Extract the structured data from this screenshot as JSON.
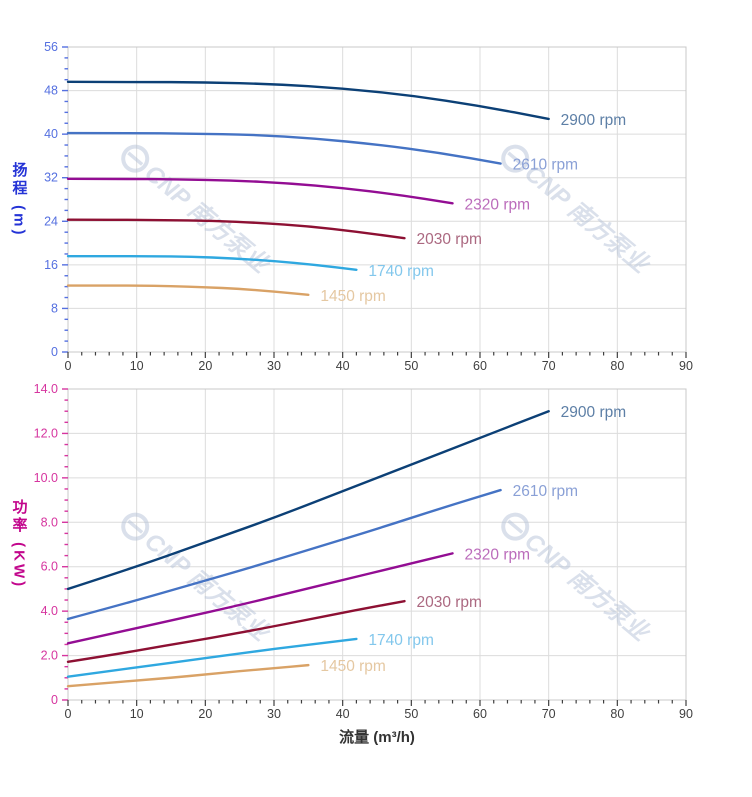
{
  "watermark": {
    "brand": "CNP",
    "text": "南方泵业",
    "color": "#b6c3d8",
    "opacity": 0.5
  },
  "chart_data": [
    {
      "id": "head-chart",
      "type": "line",
      "y_title": "扬程 (m)",
      "x_title": "",
      "axis_label_color": "#2433d6",
      "tick_color": "#5570e0",
      "x_tick_color": "#3f3f3f",
      "grid": true,
      "x_axis": {
        "min": 0,
        "max": 90,
        "major": 10,
        "minor": 2,
        "labels": [
          "0",
          "10",
          "20",
          "30",
          "40",
          "50",
          "60",
          "70",
          "80",
          "90"
        ]
      },
      "y_axis": {
        "min": 0,
        "max": 56,
        "major": 8,
        "minor": 2,
        "labels": [
          "0",
          "8",
          "16",
          "24",
          "32",
          "40",
          "48",
          "56"
        ]
      },
      "series": [
        {
          "name": "2900 rpm",
          "color": "#0c4076",
          "label_color": "#5d7fa6",
          "points": [
            [
              0,
              49.6
            ],
            [
              10,
              49.6
            ],
            [
              20,
              49.5
            ],
            [
              30,
              49.2
            ],
            [
              40,
              48.4
            ],
            [
              50,
              47.1
            ],
            [
              60,
              45.2
            ],
            [
              70,
              42.8
            ]
          ]
        },
        {
          "name": "2610 rpm",
          "color": "#4573c4",
          "label_color": "#8aa0d6",
          "points": [
            [
              0,
              40.2
            ],
            [
              9,
              40.2
            ],
            [
              18,
              40.1
            ],
            [
              27,
              39.9
            ],
            [
              36,
              39.2
            ],
            [
              45,
              38.1
            ],
            [
              54,
              36.6
            ],
            [
              63,
              34.6
            ]
          ]
        },
        {
          "name": "2320 rpm",
          "color": "#930d93",
          "label_color": "#bb6cbb",
          "points": [
            [
              0,
              31.8
            ],
            [
              8,
              31.8
            ],
            [
              16,
              31.7
            ],
            [
              24,
              31.5
            ],
            [
              32,
              31.0
            ],
            [
              40,
              30.1
            ],
            [
              48,
              28.9
            ],
            [
              56,
              27.3
            ]
          ]
        },
        {
          "name": "2030 rpm",
          "color": "#8d1033",
          "label_color": "#ab6880",
          "points": [
            [
              0,
              24.3
            ],
            [
              7,
              24.3
            ],
            [
              14,
              24.2
            ],
            [
              21,
              24.1
            ],
            [
              28,
              23.7
            ],
            [
              35,
              23.1
            ],
            [
              42,
              22.1
            ],
            [
              49,
              20.9
            ]
          ]
        },
        {
          "name": "1740 rpm",
          "color": "#2fa8e0",
          "label_color": "#82c7ec",
          "points": [
            [
              0,
              17.6
            ],
            [
              6,
              17.6
            ],
            [
              12,
              17.6
            ],
            [
              18,
              17.5
            ],
            [
              24,
              17.2
            ],
            [
              30,
              16.7
            ],
            [
              36,
              16.0
            ],
            [
              42,
              15.1
            ]
          ]
        },
        {
          "name": "1450 rpm",
          "color": "#d9a266",
          "label_color": "#e5c8a2",
          "points": [
            [
              0,
              12.2
            ],
            [
              5,
              12.2
            ],
            [
              10,
              12.2
            ],
            [
              15,
              12.1
            ],
            [
              20,
              11.9
            ],
            [
              25,
              11.6
            ],
            [
              30,
              11.1
            ],
            [
              35,
              10.5
            ]
          ]
        }
      ]
    },
    {
      "id": "power-chart",
      "type": "line",
      "y_title": "功率 (KW)",
      "x_title": "流量 (m³/h)",
      "axis_label_color": "#c2068c",
      "tick_color": "#d6359f",
      "x_tick_color": "#3f3f3f",
      "grid": true,
      "x_axis": {
        "min": 0,
        "max": 90,
        "major": 10,
        "minor": 2,
        "labels": [
          "0",
          "10",
          "20",
          "30",
          "40",
          "50",
          "60",
          "70",
          "80",
          "90"
        ]
      },
      "y_axis": {
        "min": 0,
        "max": 14,
        "major": 2,
        "minor": 0.5,
        "labels": [
          "0",
          "2.0",
          "4.0",
          "6.0",
          "8.0",
          "10.0",
          "12.0",
          "14.0"
        ]
      },
      "series": [
        {
          "name": "2900 rpm",
          "color": "#0c4076",
          "label_color": "#5d7fa6",
          "points": [
            [
              0,
              5.0
            ],
            [
              10,
              6.0
            ],
            [
              20,
              7.1
            ],
            [
              30,
              8.2
            ],
            [
              40,
              9.4
            ],
            [
              50,
              10.6
            ],
            [
              60,
              11.8
            ],
            [
              70,
              13.0
            ]
          ]
        },
        {
          "name": "2610 rpm",
          "color": "#4573c4",
          "label_color": "#8aa0d6",
          "points": [
            [
              0,
              3.65
            ],
            [
              9,
              4.4
            ],
            [
              18,
              5.2
            ],
            [
              27,
              6.0
            ],
            [
              36,
              6.85
            ],
            [
              45,
              7.7
            ],
            [
              54,
              8.6
            ],
            [
              63,
              9.45
            ]
          ]
        },
        {
          "name": "2320 rpm",
          "color": "#930d93",
          "label_color": "#bb6cbb",
          "points": [
            [
              0,
              2.55
            ],
            [
              8,
              3.1
            ],
            [
              16,
              3.65
            ],
            [
              24,
              4.2
            ],
            [
              32,
              4.8
            ],
            [
              40,
              5.4
            ],
            [
              48,
              6.0
            ],
            [
              56,
              6.6
            ]
          ]
        },
        {
          "name": "2030 rpm",
          "color": "#8d1033",
          "label_color": "#ab6880",
          "points": [
            [
              0,
              1.72
            ],
            [
              7,
              2.06
            ],
            [
              14,
              2.44
            ],
            [
              21,
              2.8
            ],
            [
              28,
              3.2
            ],
            [
              35,
              3.62
            ],
            [
              42,
              4.05
            ],
            [
              49,
              4.45
            ]
          ]
        },
        {
          "name": "1740 rpm",
          "color": "#2fa8e0",
          "label_color": "#82c7ec",
          "points": [
            [
              0,
              1.05
            ],
            [
              6,
              1.3
            ],
            [
              12,
              1.55
            ],
            [
              18,
              1.8
            ],
            [
              24,
              2.05
            ],
            [
              30,
              2.3
            ],
            [
              36,
              2.52
            ],
            [
              42,
              2.75
            ]
          ]
        },
        {
          "name": "1450 rpm",
          "color": "#d9a266",
          "label_color": "#e5c8a2",
          "points": [
            [
              0,
              0.62
            ],
            [
              5,
              0.75
            ],
            [
              10,
              0.88
            ],
            [
              15,
              1.0
            ],
            [
              20,
              1.15
            ],
            [
              25,
              1.3
            ],
            [
              30,
              1.43
            ],
            [
              35,
              1.57
            ]
          ]
        }
      ]
    }
  ]
}
